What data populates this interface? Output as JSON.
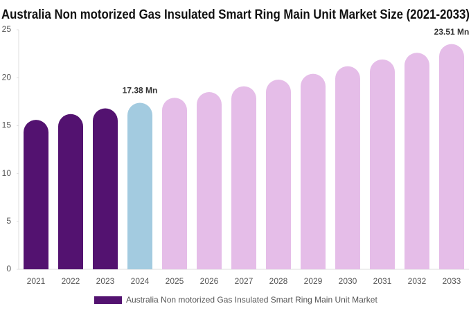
{
  "chart_data": {
    "type": "bar",
    "title": "Australia Non motorized Gas Insulated Smart Ring Main Unit Market Size (2021-2033)",
    "categories": [
      "2021",
      "2022",
      "2023",
      "2024",
      "2025",
      "2026",
      "2027",
      "2028",
      "2029",
      "2030",
      "2031",
      "2032",
      "2033"
    ],
    "series": [
      {
        "name": "Australia Non motorized Gas Insulated Smart Ring Main Unit Market",
        "color": "#531270",
        "values": [
          15.6,
          16.2,
          16.8,
          17.38,
          17.9,
          18.5,
          19.1,
          19.8,
          20.4,
          21.2,
          21.9,
          22.6,
          23.51
        ],
        "value_labels": [
          null,
          null,
          null,
          "17.38 Mn",
          null,
          null,
          null,
          null,
          null,
          null,
          null,
          null,
          "23.51 Mn"
        ],
        "colors": [
          "#531270",
          "#531270",
          "#531270",
          "#a3cbe0",
          "#e5bde8",
          "#e5bde8",
          "#e5bde8",
          "#e5bde8",
          "#e5bde8",
          "#e5bde8",
          "#e5bde8",
          "#e5bde8",
          "#e5bde8"
        ]
      }
    ],
    "ylim": [
      0,
      25
    ],
    "yticks": [
      0,
      5,
      10,
      15,
      20,
      25
    ],
    "grid": false,
    "legend": "bottom"
  }
}
